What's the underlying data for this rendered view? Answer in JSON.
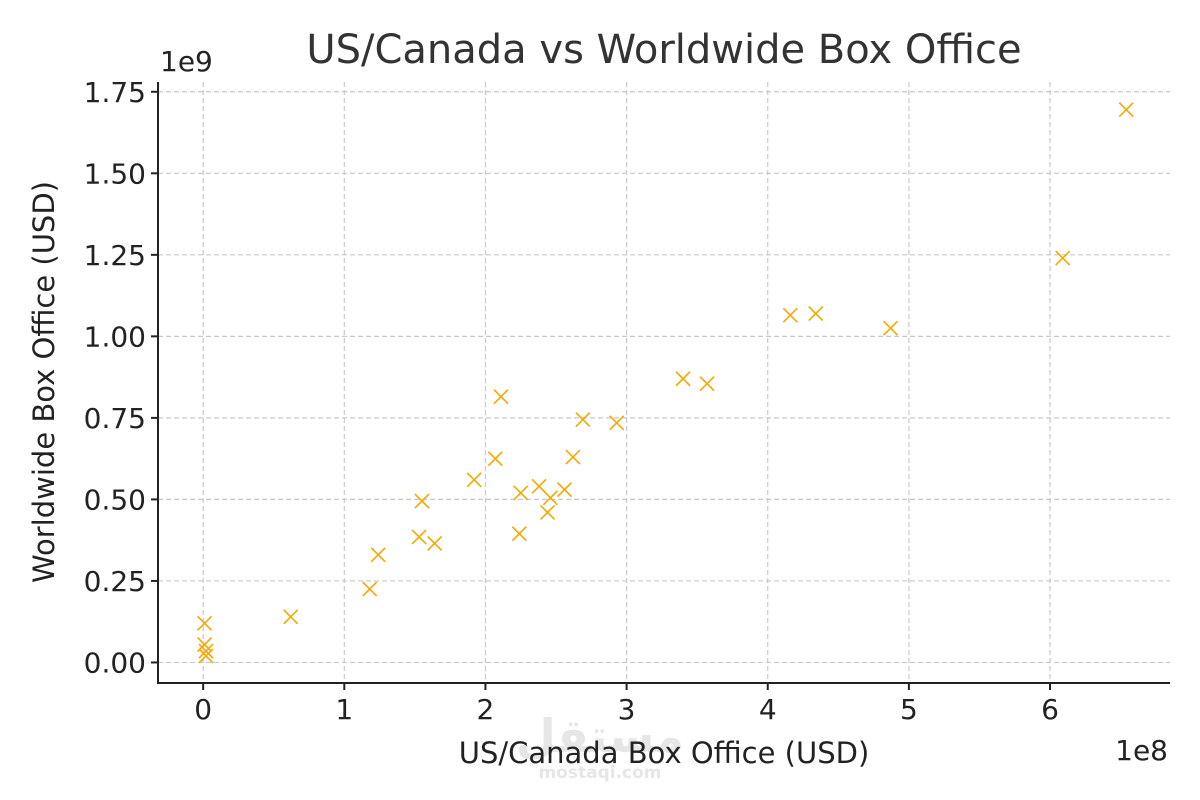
{
  "chart_data": {
    "type": "scatter",
    "title": "US/Canada vs Worldwide Box Office",
    "xlabel": "US/Canada Box Office (USD)",
    "ylabel": "Worldwide Box Office (USD)",
    "x_offset_label": "1e8",
    "y_offset_label": "1e9",
    "xlim": [
      -0.32,
      6.85
    ],
    "ylim": [
      -0.063,
      1.78
    ],
    "x_ticks": [
      0,
      1,
      2,
      3,
      4,
      5,
      6
    ],
    "x_tick_labels": [
      "0",
      "1",
      "2",
      "3",
      "4",
      "5",
      "6"
    ],
    "y_ticks": [
      0,
      0.25,
      0.5,
      0.75,
      1.0,
      1.25,
      1.5,
      1.75
    ],
    "y_tick_labels": [
      "0.00",
      "0.25",
      "0.50",
      "0.75",
      "1.00",
      "1.25",
      "1.50",
      "1.75"
    ],
    "grid": true,
    "marker": "x",
    "color": "#f5a800",
    "points": [
      {
        "x": 0.01,
        "y": 0.12
      },
      {
        "x": 0.01,
        "y": 0.055
      },
      {
        "x": 0.02,
        "y": 0.035
      },
      {
        "x": 0.02,
        "y": 0.02
      },
      {
        "x": 0.62,
        "y": 0.14
      },
      {
        "x": 1.18,
        "y": 0.225
      },
      {
        "x": 1.24,
        "y": 0.33
      },
      {
        "x": 1.53,
        "y": 0.385
      },
      {
        "x": 1.55,
        "y": 0.495
      },
      {
        "x": 1.64,
        "y": 0.365
      },
      {
        "x": 1.92,
        "y": 0.56
      },
      {
        "x": 2.07,
        "y": 0.625
      },
      {
        "x": 2.11,
        "y": 0.815
      },
      {
        "x": 2.24,
        "y": 0.395
      },
      {
        "x": 2.25,
        "y": 0.52
      },
      {
        "x": 2.38,
        "y": 0.54
      },
      {
        "x": 2.44,
        "y": 0.46
      },
      {
        "x": 2.46,
        "y": 0.505
      },
      {
        "x": 2.56,
        "y": 0.53
      },
      {
        "x": 2.62,
        "y": 0.63
      },
      {
        "x": 2.69,
        "y": 0.745
      },
      {
        "x": 2.93,
        "y": 0.735
      },
      {
        "x": 3.4,
        "y": 0.87
      },
      {
        "x": 3.57,
        "y": 0.855
      },
      {
        "x": 4.16,
        "y": 1.065
      },
      {
        "x": 4.34,
        "y": 1.07
      },
      {
        "x": 4.87,
        "y": 1.025
      },
      {
        "x": 6.09,
        "y": 1.24
      },
      {
        "x": 6.54,
        "y": 1.695
      }
    ]
  },
  "watermark": {
    "main": "مستقل",
    "sub": "mostaqi.com"
  }
}
